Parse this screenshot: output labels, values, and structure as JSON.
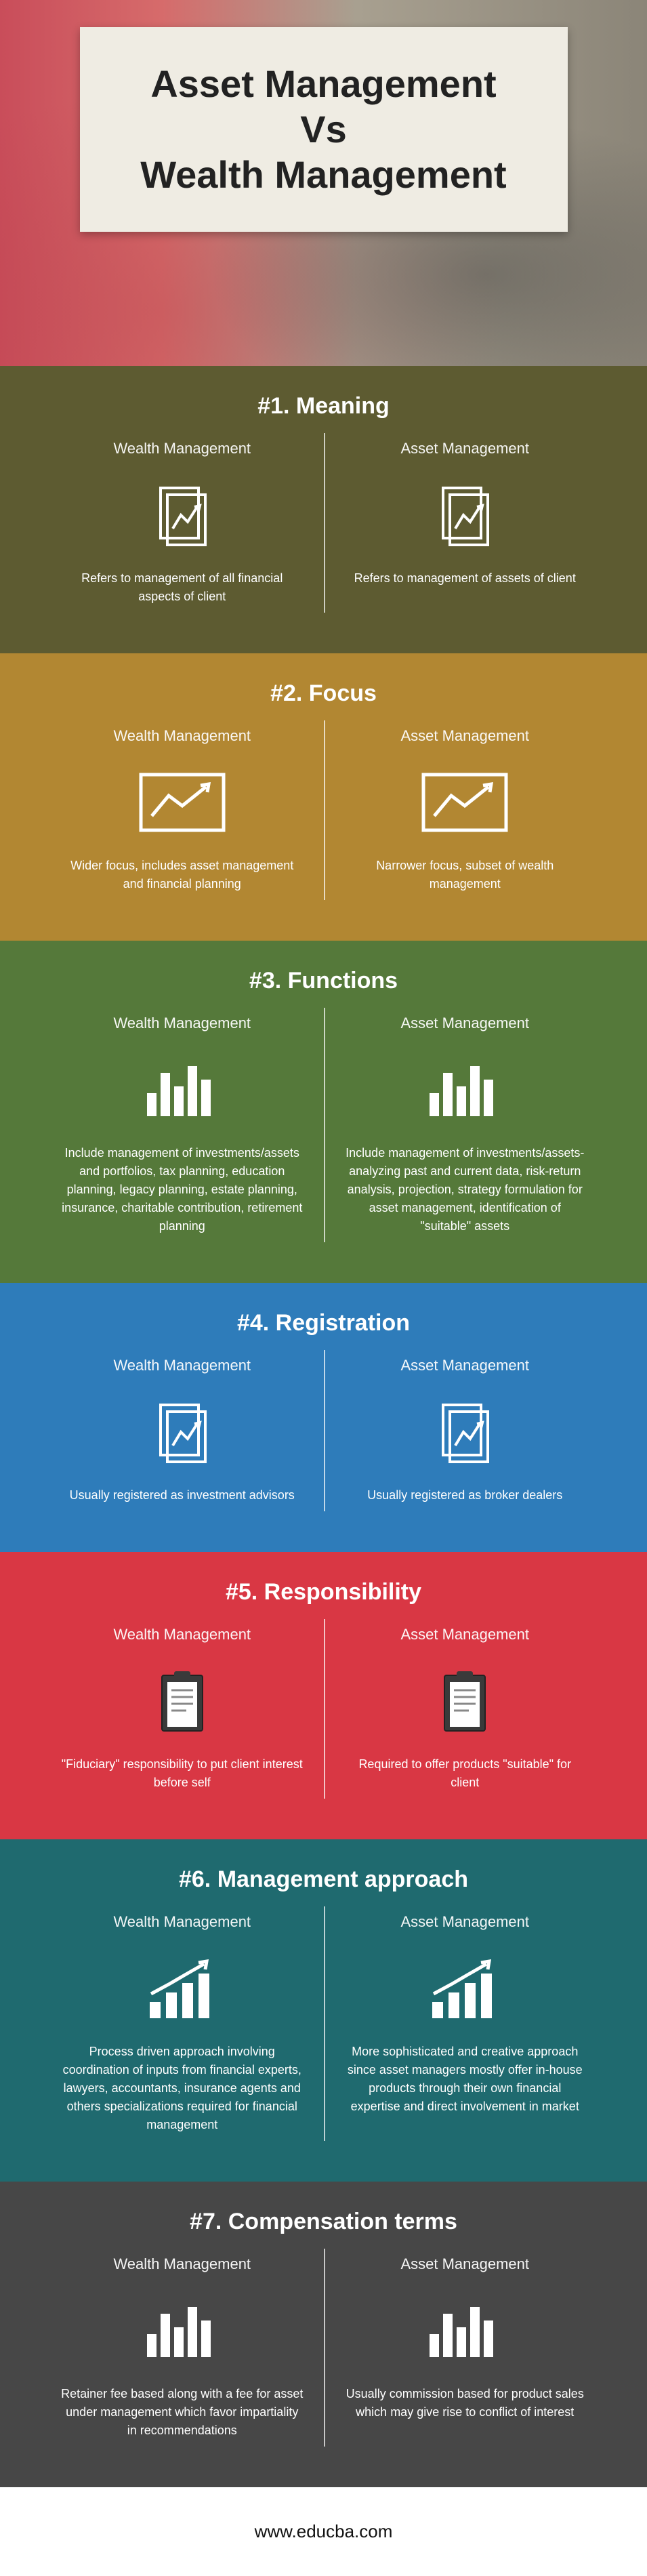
{
  "title_lines": [
    "Asset Management",
    "Vs",
    "Wealth Management"
  ],
  "left_label": "Wealth Management",
  "right_label": "Asset Management",
  "footer": "www.educba.com",
  "sections": [
    {
      "title": "#1. Meaning",
      "bg": "#5d5b31",
      "icon": "doc-chart",
      "wealth": "Refers to management of all financial aspects of client",
      "asset": "Refers to management of assets of client"
    },
    {
      "title": "#2. Focus",
      "bg": "#b28732",
      "icon": "trend-box",
      "wealth": "Wider focus, includes asset management and financial planning",
      "asset": "Narrower focus, subset of wealth management"
    },
    {
      "title": "#3. Functions",
      "bg": "#55793a",
      "icon": "bars-tall",
      "wealth": "Include management of investments/assets and portfolios, tax planning, education planning, legacy planning, estate planning, insurance, charitable contribution, retirement planning",
      "asset": "Include management of investments/assets- analyzing past and current data, risk-return analysis, projection, strategy formulation for asset management, identification of \"suitable\" assets"
    },
    {
      "title": "#4. Registration",
      "bg": "#2e7cba",
      "icon": "doc-chart",
      "wealth": "Usually registered as investment advisors",
      "asset": "Usually registered as broker dealers"
    },
    {
      "title": "#5. Responsibility",
      "bg": "#d93744",
      "icon": "clipboard",
      "wealth": "\"Fiduciary\" responsibility to put client interest before self",
      "asset": "Required to offer products \"suitable\" for client"
    },
    {
      "title": "#6. Management approach",
      "bg": "#1f6a6f",
      "icon": "growth-bars",
      "wealth": "Process driven approach involving coordination of inputs from financial experts, lawyers, accountants, insurance agents and others specializations required for financial management",
      "asset": "More sophisticated and creative approach since asset managers mostly offer in-house products through their own financial expertise and direct involvement in market"
    },
    {
      "title": "#7. Compensation terms",
      "bg": "#474747",
      "icon": "bars-tall",
      "wealth": "Retainer fee based along with a fee for asset under management which favor impartiality in recommendations",
      "asset": "Usually commission based for product sales which may give rise to conflict of interest"
    }
  ]
}
